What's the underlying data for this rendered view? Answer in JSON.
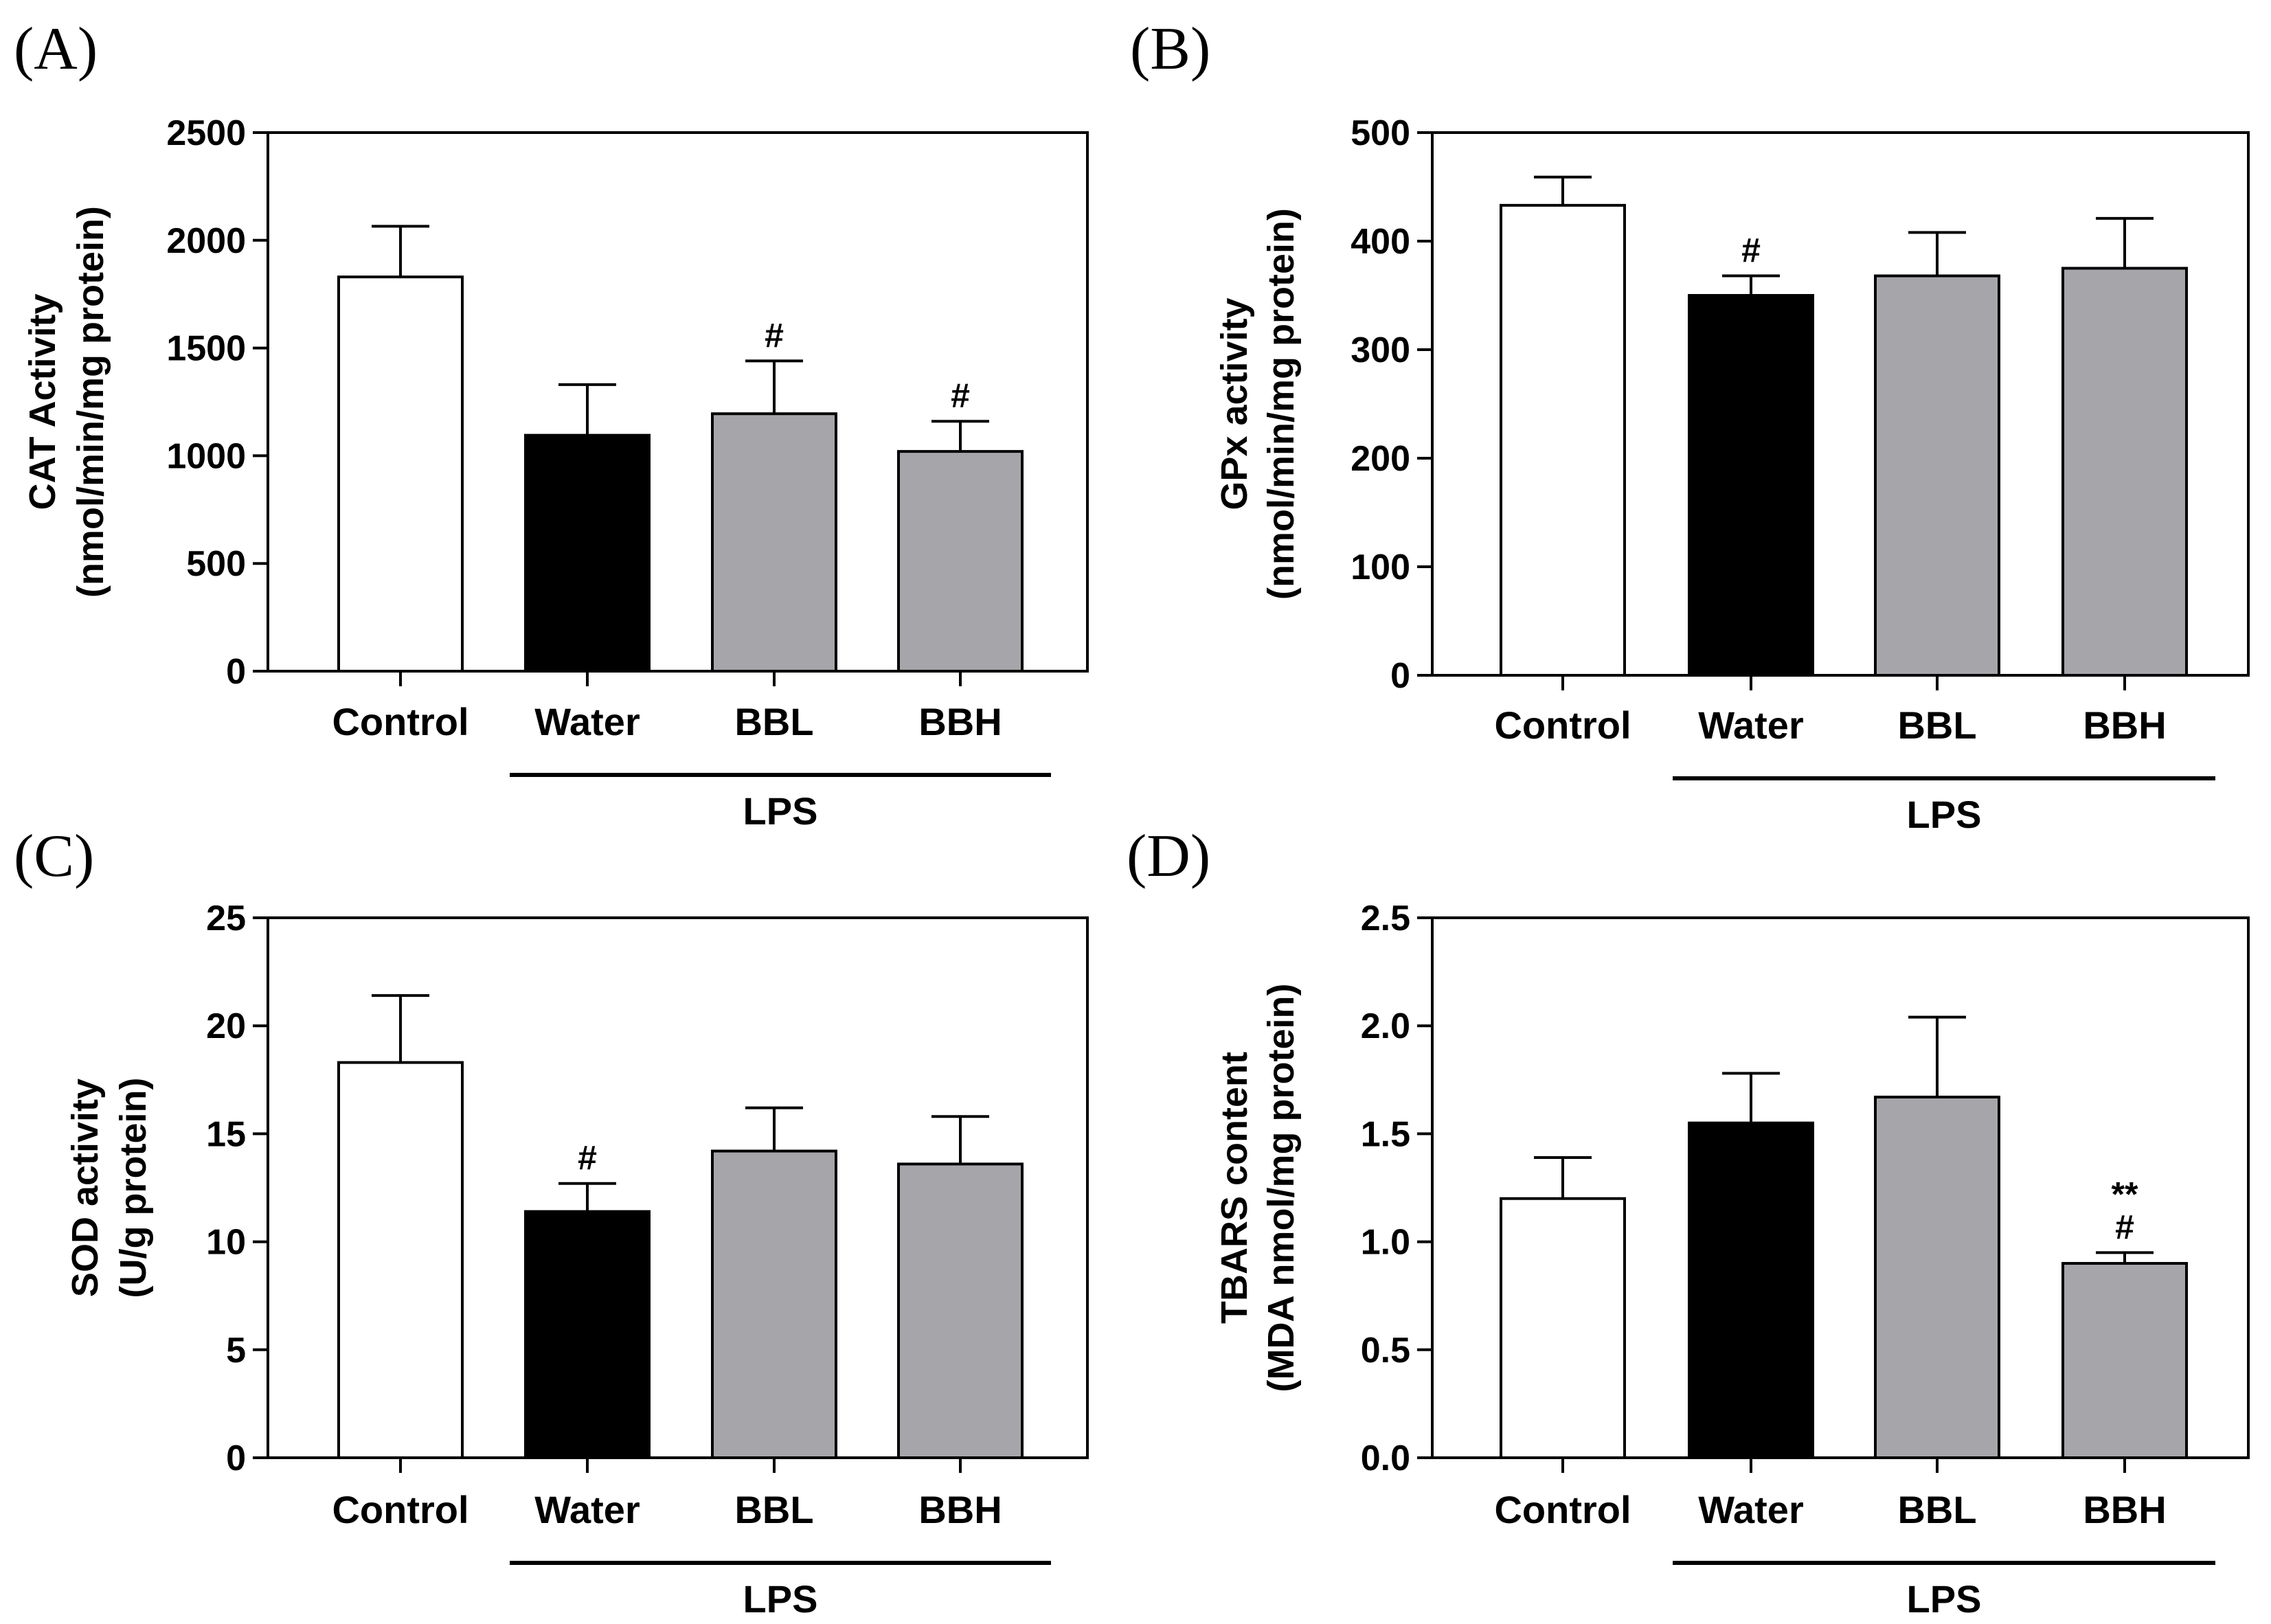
{
  "chart_data": [
    {
      "panel": "(A)",
      "type": "bar",
      "categories": [
        "Control",
        "Water",
        "BBL",
        "BBH"
      ],
      "values": [
        1830,
        1095,
        1195,
        1020
      ],
      "errors": [
        235,
        235,
        245,
        140
      ],
      "significance": [
        "",
        "",
        "#",
        "#"
      ],
      "ylabel_line1": "CAT Activity",
      "ylabel_line2": "(nmol/min/mg protein)",
      "ylim": [
        0,
        2500
      ],
      "yticks": [
        0,
        500,
        1000,
        1500,
        2000,
        2500
      ],
      "group_label": "LPS",
      "colors": [
        "#ffffff",
        "#000000",
        "#a6a6aa",
        "#a6a6aa"
      ]
    },
    {
      "panel": "(B)",
      "type": "bar",
      "categories": [
        "Control",
        "Water",
        "BBL",
        "BBH"
      ],
      "values": [
        433,
        350,
        368,
        375
      ],
      "errors": [
        26,
        18,
        40,
        46
      ],
      "significance": [
        "",
        "#",
        "",
        ""
      ],
      "ylabel_line1": "GPx activity",
      "ylabel_line2": "(nmol/min/mg protein)",
      "ylim": [
        0,
        500
      ],
      "yticks": [
        0,
        100,
        200,
        300,
        400,
        500
      ],
      "group_label": "LPS",
      "colors": [
        "#ffffff",
        "#000000",
        "#a6a6aa",
        "#a6a6aa"
      ]
    },
    {
      "panel": "(C)",
      "type": "bar",
      "categories": [
        "Control",
        "Water",
        "BBL",
        "BBH"
      ],
      "values": [
        18.3,
        11.4,
        14.2,
        13.6
      ],
      "errors": [
        3.1,
        1.3,
        2.0,
        2.2
      ],
      "significance": [
        "",
        "#",
        "",
        ""
      ],
      "ylabel_line1": "SOD activity",
      "ylabel_line2": "(U/g protein)",
      "ylim": [
        0,
        25
      ],
      "yticks": [
        0,
        5,
        10,
        15,
        20,
        25
      ],
      "group_label": "LPS",
      "colors": [
        "#ffffff",
        "#000000",
        "#a6a6aa",
        "#a6a6aa"
      ]
    },
    {
      "panel": "(D)",
      "type": "bar",
      "categories": [
        "Control",
        "Water",
        "BBL",
        "BBH"
      ],
      "values": [
        1.2,
        1.55,
        1.67,
        0.9
      ],
      "errors": [
        0.19,
        0.23,
        0.37,
        0.05
      ],
      "significance": [
        "",
        "",
        "",
        "**\n#"
      ],
      "ylabel_line1": "TBARS content",
      "ylabel_line2": "(MDA nmol/mg protein)",
      "ylim": [
        0,
        2.5
      ],
      "yticks": [
        "0.0",
        "0.5",
        "1.0",
        "1.5",
        "2.0",
        "2.5"
      ],
      "group_label": "LPS",
      "colors": [
        "#ffffff",
        "#000000",
        "#a6a6aa",
        "#a6a6aa"
      ]
    }
  ]
}
